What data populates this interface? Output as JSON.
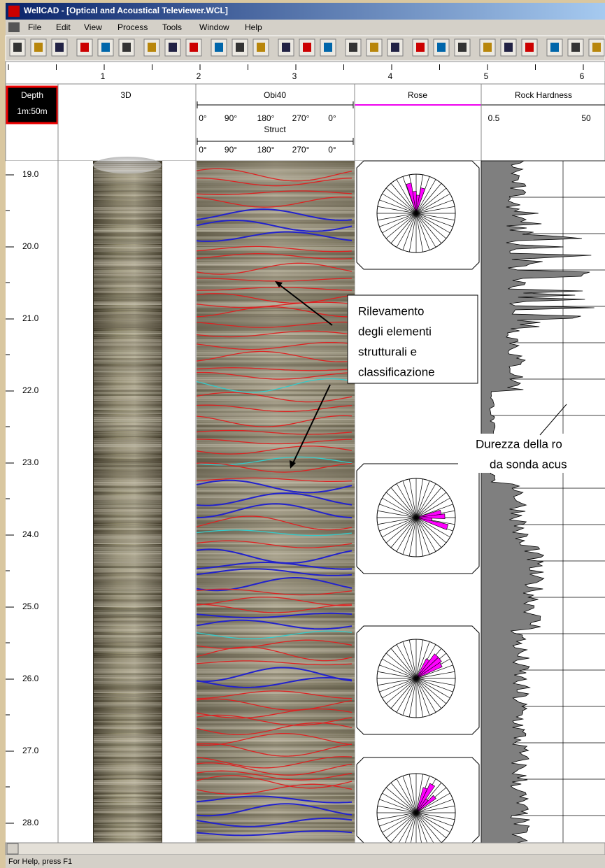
{
  "window": {
    "title": "WellCAD - [Optical and Acoustical Televiewer.WCL]"
  },
  "menu": [
    "File",
    "Edit",
    "View",
    "Process",
    "Tools",
    "Window",
    "Help"
  ],
  "ruler": [
    1,
    2,
    3,
    4,
    5,
    6
  ],
  "headers": {
    "depth": "Depth",
    "scale": "1m:50m",
    "track_3d": "3D",
    "obi40": {
      "name": "Obi40",
      "ticks": [
        "0°",
        "90°",
        "180°",
        "270°",
        "0°"
      ]
    },
    "struct": {
      "name": "Struct",
      "ticks": [
        "0°",
        "90°",
        "180°",
        "270°",
        "0°"
      ]
    },
    "rose": "Rose",
    "hardness": {
      "name": "Rock Hardness",
      "min": 0.5,
      "max": 50
    }
  },
  "depths": [
    "19.0",
    "20.0",
    "21.0",
    "22.0",
    "23.0",
    "24.0",
    "25.0",
    "26.0",
    "27.0",
    "28.0"
  ],
  "annotations": {
    "structures": [
      "Rilevamento",
      "degli elementi",
      "strutturali e",
      "classificazione"
    ],
    "hardness": [
      "Durezza della ro",
      "da sonda acus"
    ]
  },
  "status": "For Help, press F1"
}
